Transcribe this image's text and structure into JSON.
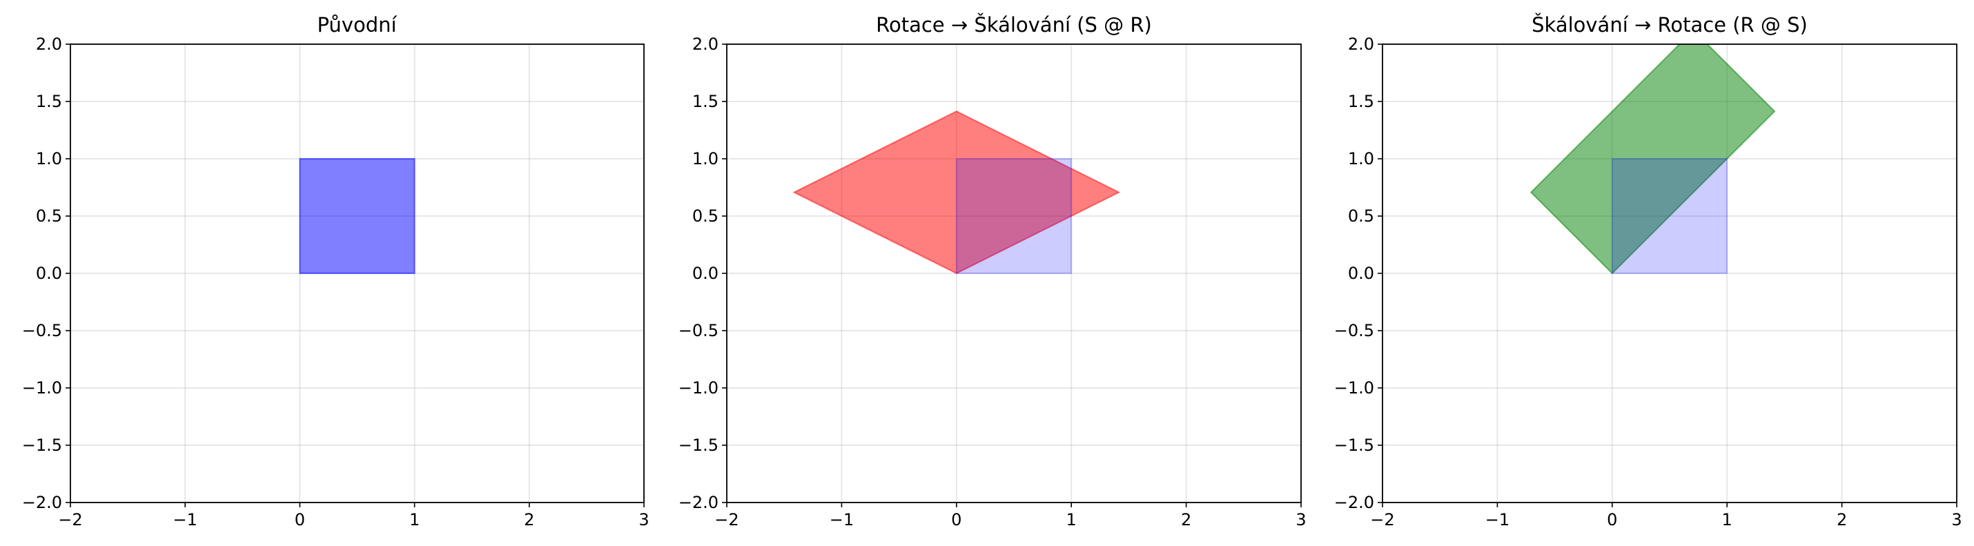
{
  "chart_data": [
    {
      "type": "area",
      "title": "Původní",
      "xlim": [
        -2,
        3
      ],
      "ylim": [
        -2,
        2
      ],
      "xticks": [
        "−2",
        "−1",
        "0",
        "1",
        "2",
        "3"
      ],
      "yticks": [
        "−2.0",
        "−1.5",
        "−1.0",
        "−0.5",
        "0.0",
        "0.5",
        "1.0",
        "1.5",
        "2.0"
      ],
      "xtick_values": [
        -2,
        -1,
        0,
        1,
        2,
        3
      ],
      "ytick_values": [
        -2,
        -1.5,
        -1,
        -0.5,
        0,
        0.5,
        1,
        1.5,
        2
      ],
      "grid": true,
      "series": [
        {
          "fill": "#0000ff",
          "edge": "#0000ff",
          "opacity": 0.5,
          "points": [
            [
              0,
              0
            ],
            [
              1,
              0
            ],
            [
              1,
              1
            ],
            [
              0,
              1
            ]
          ]
        }
      ]
    },
    {
      "type": "area",
      "title": "Rotace → Škálování (S @ R)",
      "xlim": [
        -2,
        3
      ],
      "ylim": [
        -2,
        2
      ],
      "xticks": [
        "−2",
        "−1",
        "0",
        "1",
        "2",
        "3"
      ],
      "yticks": [
        "−2.0",
        "−1.5",
        "−1.0",
        "−0.5",
        "0.0",
        "0.5",
        "1.0",
        "1.5",
        "2.0"
      ],
      "xtick_values": [
        -2,
        -1,
        0,
        1,
        2,
        3
      ],
      "ytick_values": [
        -2,
        -1.5,
        -1,
        -0.5,
        0,
        0.5,
        1,
        1.5,
        2
      ],
      "grid": true,
      "series": [
        {
          "fill": "#ff0000",
          "edge": "#ff0000",
          "opacity": 0.5,
          "points": [
            [
              0,
              0
            ],
            [
              1.414,
              0.707
            ],
            [
              0,
              1.414
            ],
            [
              -1.414,
              0.707
            ]
          ]
        },
        {
          "fill": "#0000ff",
          "edge": "#0000ff",
          "opacity": 0.2,
          "points": [
            [
              0,
              0
            ],
            [
              1,
              0
            ],
            [
              1,
              1
            ],
            [
              0,
              1
            ]
          ]
        }
      ]
    },
    {
      "type": "area",
      "title": "Škálování → Rotace (R @ S)",
      "xlim": [
        -2,
        3
      ],
      "ylim": [
        -2,
        2
      ],
      "xticks": [
        "−2",
        "−1",
        "0",
        "1",
        "2",
        "3"
      ],
      "yticks": [
        "−2.0",
        "−1.5",
        "−1.0",
        "−0.5",
        "0.0",
        "0.5",
        "1.0",
        "1.5",
        "2.0"
      ],
      "xtick_values": [
        -2,
        -1,
        0,
        1,
        2,
        3
      ],
      "ytick_values": [
        -2,
        -1.5,
        -1,
        -0.5,
        0,
        0.5,
        1,
        1.5,
        2
      ],
      "grid": true,
      "series": [
        {
          "fill": "#008000",
          "edge": "#008000",
          "opacity": 0.5,
          "points": [
            [
              0,
              0
            ],
            [
              1.414,
              1.414
            ],
            [
              0.707,
              2.121
            ],
            [
              -0.707,
              0.707
            ]
          ]
        },
        {
          "fill": "#0000ff",
          "edge": "#0000ff",
          "opacity": 0.2,
          "points": [
            [
              0,
              0
            ],
            [
              1,
              0
            ],
            [
              1,
              1
            ],
            [
              0,
              1
            ]
          ]
        }
      ]
    }
  ]
}
